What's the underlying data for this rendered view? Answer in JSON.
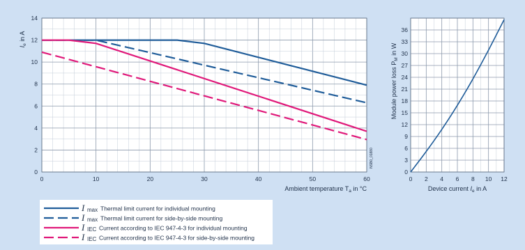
{
  "chart_data": [
    {
      "type": "line",
      "xlabel": "Ambient temperature T",
      "xlabel_sub": "a",
      "xlabel_unit": " in °C",
      "ylabel": "I",
      "ylabel_sub": "e",
      "ylabel_unit": " in A",
      "xlim": [
        0,
        60
      ],
      "ylim": [
        0,
        14
      ],
      "xticks": [
        0,
        10,
        20,
        30,
        40,
        50,
        60
      ],
      "yticks": [
        0,
        2,
        4,
        6,
        8,
        10,
        12,
        14
      ],
      "grid": true,
      "code_label": "NSB0_01880",
      "series": [
        {
          "name": "Thermal limit current for individual mounting",
          "symbol": "I",
          "symbol_sub": "max",
          "color": "#1f5c99",
          "dash": "solid",
          "x": [
            0,
            25,
            30,
            60
          ],
          "y": [
            12,
            12,
            11.7,
            7.9
          ]
        },
        {
          "name": "Thermal limit current for side-by-side mounting",
          "symbol": "I",
          "symbol_sub": "max",
          "color": "#1f5c99",
          "dash": "dashed",
          "x": [
            0,
            10,
            60
          ],
          "y": [
            12,
            12,
            6.3
          ]
        },
        {
          "name": "Current according to IEC 947-4-3 for individual mounting",
          "symbol": "I",
          "symbol_sub": "IEC",
          "color": "#e0197a",
          "dash": "solid",
          "x": [
            0,
            5,
            10,
            60
          ],
          "y": [
            12,
            12,
            11.7,
            3.7
          ]
        },
        {
          "name": "Current according to IEC 947-4-3 for side-by-side mounting",
          "symbol": "I",
          "symbol_sub": "IEC",
          "color": "#e0197a",
          "dash": "dashed",
          "x": [
            0,
            60
          ],
          "y": [
            10.9,
            2.95
          ]
        }
      ]
    },
    {
      "type": "line",
      "xlabel": "Device current",
      "xlabel_var": "I",
      "xlabel_sub": "e",
      "xlabel_unit": " in A",
      "ylabel": "Module power loss P",
      "ylabel_sub": "M",
      "ylabel_unit": " in W",
      "xlim": [
        0,
        12
      ],
      "ylim": [
        0,
        39
      ],
      "xticks": [
        0,
        2,
        4,
        6,
        8,
        10,
        12
      ],
      "yticks": [
        0,
        3,
        6,
        9,
        12,
        15,
        18,
        21,
        24,
        27,
        30,
        33,
        36
      ],
      "grid": true,
      "series": [
        {
          "color": "#1f5c99",
          "x": [
            0,
            2,
            4,
            6,
            8,
            10,
            12
          ],
          "y": [
            0,
            5.2,
            10.8,
            16.9,
            23.6,
            30.9,
            38.6
          ]
        }
      ]
    }
  ]
}
